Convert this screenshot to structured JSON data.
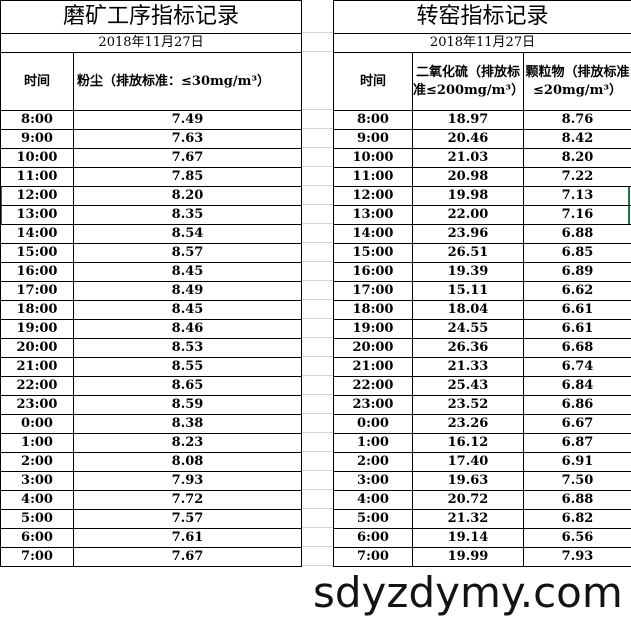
{
  "left_table": {
    "title": "磨矿工序指标记录",
    "date": "2018年11月27日",
    "headers": [
      "时间",
      "粉尘（排放标准：≤30mg/m³）"
    ],
    "rows": [
      [
        "8:00",
        "7.49"
      ],
      [
        "9:00",
        "7.63"
      ],
      [
        "10:00",
        "7.67"
      ],
      [
        "11:00",
        "7.85"
      ],
      [
        "12:00",
        "8.20"
      ],
      [
        "13:00",
        "8.35"
      ],
      [
        "14:00",
        "8.54"
      ],
      [
        "15:00",
        "8.57"
      ],
      [
        "16:00",
        "8.45"
      ],
      [
        "17:00",
        "8.49"
      ],
      [
        "18:00",
        "8.45"
      ],
      [
        "19:00",
        "8.46"
      ],
      [
        "20:00",
        "8.53"
      ],
      [
        "21:00",
        "8.55"
      ],
      [
        "22:00",
        "8.65"
      ],
      [
        "23:00",
        "8.59"
      ],
      [
        "0:00",
        "8.38"
      ],
      [
        "1:00",
        "8.23"
      ],
      [
        "2:00",
        "8.08"
      ],
      [
        "3:00",
        "7.93"
      ],
      [
        "4:00",
        "7.72"
      ],
      [
        "5:00",
        "7.57"
      ],
      [
        "6:00",
        "7.61"
      ],
      [
        "7:00",
        "7.67"
      ]
    ]
  },
  "right_table": {
    "title": "转窑指标记录",
    "date": "2018年11月27日",
    "headers": [
      "时间",
      "二氧化硫（排放标准≤200mg/m³）",
      "颗粒物（排放标准≤20mg/m³）"
    ],
    "rows": [
      [
        "8:00",
        "18.97",
        "8.76"
      ],
      [
        "9:00",
        "20.46",
        "8.42"
      ],
      [
        "10:00",
        "21.03",
        "8.20"
      ],
      [
        "11:00",
        "20.98",
        "7.22"
      ],
      [
        "12:00",
        "19.98",
        "7.13"
      ],
      [
        "13:00",
        "22.00",
        "7.16"
      ],
      [
        "14:00",
        "23.96",
        "6.88"
      ],
      [
        "15:00",
        "26.51",
        "6.85"
      ],
      [
        "16:00",
        "19.39",
        "6.89"
      ],
      [
        "17:00",
        "15.11",
        "6.62"
      ],
      [
        "18:00",
        "18.04",
        "6.61"
      ],
      [
        "19:00",
        "24.55",
        "6.61"
      ],
      [
        "20:00",
        "26.36",
        "6.68"
      ],
      [
        "21:00",
        "21.33",
        "6.74"
      ],
      [
        "22:00",
        "25.43",
        "6.84"
      ],
      [
        "23:00",
        "23.52",
        "6.86"
      ],
      [
        "0:00",
        "23.26",
        "6.67"
      ],
      [
        "1:00",
        "16.12",
        "6.87"
      ],
      [
        "2:00",
        "17.40",
        "6.91"
      ],
      [
        "3:00",
        "19.63",
        "7.50"
      ],
      [
        "4:00",
        "20.72",
        "6.88"
      ],
      [
        "5:00",
        "21.32",
        "6.82"
      ],
      [
        "6:00",
        "19.14",
        "6.56"
      ],
      [
        "7:00",
        "19.99",
        "7.93"
      ]
    ]
  },
  "watermark": "sdyzdymy.com",
  "colors": {
    "selection": "#217346",
    "grid": "#d4d4d4"
  }
}
